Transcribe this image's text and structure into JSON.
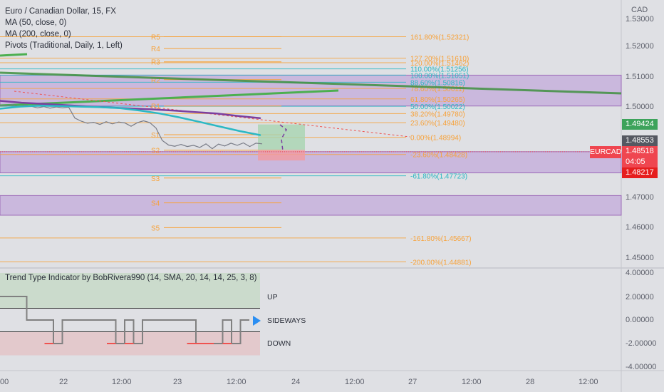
{
  "legend": {
    "title": "Euro / Canadian Dollar, 15, FX",
    "ma50": "MA (50, close, 0)",
    "ma200": "MA (200, close, 0)",
    "pivots": "Pivots (Traditional, Daily, 1, Left)"
  },
  "indicator": {
    "title": "Trend Type Indicator by BobRivera990 (14, SMA, 20, 14, 14, 25, 3, 8)",
    "zone_up": "UP",
    "zone_sideways": "SIDEWAYS",
    "zone_down": "DOWN",
    "axis_labels": [
      "4.00000",
      "2.00000",
      "0.00000",
      "-2.00000",
      "-4.00000"
    ]
  },
  "price_axis": {
    "unit": "CAD",
    "labels": [
      "1.53000",
      "1.52000",
      "1.51000",
      "1.50000",
      "1.47000",
      "1.46000",
      "1.45000"
    ]
  },
  "badges": {
    "green": "1.49424",
    "dark": "1.48553",
    "symbol": "EURCAD",
    "last": "1.48518",
    "countdown": "04:05",
    "red": "1.48217"
  },
  "time_axis": [
    "00",
    "22",
    "12:00",
    "23",
    "12:00",
    "24",
    "12:00",
    "27",
    "12:00",
    "28",
    "12:00"
  ],
  "pivot_labels": [
    "R5",
    "R4",
    "R3",
    "R2",
    "R1",
    "S1",
    "S2",
    "S3",
    "S4",
    "S5"
  ],
  "fib_labels": [
    "161.80%(1.52321)",
    "127.20%(1.51610)",
    "120.00%(1.51462)",
    "110.00%(1.51256)",
    "100.00%(1.51051)",
    "88.60%(1.50816)",
    "78.60%(1.50611)",
    "61.80%(1.50265)",
    "50.00%(1.50022)",
    "38.20%(1.49780)",
    "23.60%(1.49480)",
    "0.00%(1.48994)",
    "-23.60%(1.48428)",
    "-61.80%(1.47723)",
    "-161.80%(1.45667)",
    "-200.00%(1.44881)"
  ],
  "chart_data": {
    "type": "line",
    "title": "Euro / Canadian Dollar, 15, FX",
    "ylim": [
      1.444,
      1.534
    ],
    "series": [
      {
        "name": "MA (50, close, 0)",
        "color": "#2bb8c4",
        "values": [
          1.4994,
          1.5001,
          1.5004,
          1.5003,
          1.5001,
          1.4999,
          1.4996,
          1.4988,
          1.4978,
          1.4965,
          1.495,
          1.4935,
          1.492,
          1.4907
        ]
      },
      {
        "name": "MA (200, close, 0)",
        "color": "#7b3fa0",
        "values": [
          1.502,
          1.5014,
          1.501,
          1.5006,
          1.5002,
          1.4998,
          1.4995,
          1.4992,
          1.4988,
          1.4983,
          1.4978,
          1.497,
          1.4963
        ]
      }
    ],
    "price_close_values": [
      1.5005,
      1.5003,
      1.5008,
      1.4999,
      1.5006,
      1.5002,
      1.4997,
      1.5001,
      1.4996,
      1.5,
      1.4997,
      1.4999,
      1.4963,
      1.4953,
      1.4946,
      1.4949,
      1.4942,
      1.4951,
      1.4944,
      1.495,
      1.4947,
      1.4936,
      1.4948,
      1.4954,
      1.4948,
      1.493,
      1.4889,
      1.4874,
      1.487,
      1.4876,
      1.4869,
      1.4873,
      1.4866,
      1.4878,
      1.4862,
      1.4877,
      1.4871,
      1.488,
      1.4873,
      1.4881,
      1.4869,
      1.488,
      1.4878
    ],
    "trend_type_values": [
      2,
      2,
      2,
      0,
      0,
      0,
      -2,
      0,
      0,
      0,
      0,
      0,
      0,
      -2,
      0,
      -2,
      0,
      0,
      0,
      0,
      0,
      0,
      -2,
      -2,
      -2,
      0,
      -2,
      0,
      0
    ],
    "colors": {
      "sideways": "#808080",
      "down": "#ef5350",
      "up": "#4caf50",
      "fib": "#f7a23a",
      "pivot": "#f7a23a",
      "trend_up": "#4caf50",
      "trend_down": "#2e7d32"
    }
  }
}
